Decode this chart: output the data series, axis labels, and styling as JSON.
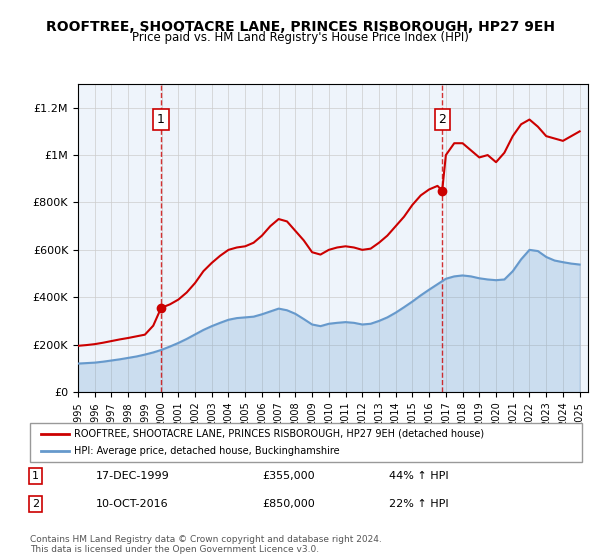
{
  "title": "ROOFTREE, SHOOTACRE LANE, PRINCES RISBOROUGH, HP27 9EH",
  "subtitle": "Price paid vs. HM Land Registry's House Price Index (HPI)",
  "legend_line1": "ROOFTREE, SHOOTACRE LANE, PRINCES RISBOROUGH, HP27 9EH (detached house)",
  "legend_line2": "HPI: Average price, detached house, Buckinghamshire",
  "footnote": "Contains HM Land Registry data © Crown copyright and database right 2024.\nThis data is licensed under the Open Government Licence v3.0.",
  "sale1_label": "1",
  "sale1_date": "17-DEC-1999",
  "sale1_price": "£355,000",
  "sale1_hpi": "44% ↑ HPI",
  "sale2_label": "2",
  "sale2_date": "10-OCT-2016",
  "sale2_price": "£850,000",
  "sale2_hpi": "22% ↑ HPI",
  "property_color": "#cc0000",
  "hpi_color": "#6699cc",
  "fill_color": "#ddeeff",
  "background_color": "#ffffff",
  "ylim": [
    0,
    1300000
  ],
  "xlim_start": 1995.0,
  "xlim_end": 2025.5,
  "sale1_x": 1999.97,
  "sale1_y": 355000,
  "sale2_x": 2016.78,
  "sale2_y": 850000,
  "property_x": [
    1995.0,
    1995.5,
    1996.0,
    1996.5,
    1997.0,
    1997.5,
    1998.0,
    1998.5,
    1999.0,
    1999.5,
    1999.97,
    2000.5,
    2001.0,
    2001.5,
    2002.0,
    2002.5,
    2003.0,
    2003.5,
    2004.0,
    2004.5,
    2005.0,
    2005.5,
    2006.0,
    2006.5,
    2007.0,
    2007.5,
    2008.0,
    2008.5,
    2009.0,
    2009.5,
    2010.0,
    2010.5,
    2011.0,
    2011.5,
    2012.0,
    2012.5,
    2013.0,
    2013.5,
    2014.0,
    2014.5,
    2015.0,
    2015.5,
    2016.0,
    2016.5,
    2016.78,
    2017.0,
    2017.5,
    2018.0,
    2018.5,
    2019.0,
    2019.5,
    2020.0,
    2020.5,
    2021.0,
    2021.5,
    2022.0,
    2022.5,
    2023.0,
    2023.5,
    2024.0,
    2024.5,
    2025.0
  ],
  "property_y": [
    195000,
    198000,
    202000,
    208000,
    215000,
    222000,
    228000,
    235000,
    242000,
    280000,
    355000,
    370000,
    390000,
    420000,
    460000,
    510000,
    545000,
    575000,
    600000,
    610000,
    615000,
    630000,
    660000,
    700000,
    730000,
    720000,
    680000,
    640000,
    590000,
    580000,
    600000,
    610000,
    615000,
    610000,
    600000,
    605000,
    630000,
    660000,
    700000,
    740000,
    790000,
    830000,
    855000,
    870000,
    850000,
    1000000,
    1050000,
    1050000,
    1020000,
    990000,
    1000000,
    970000,
    1010000,
    1080000,
    1130000,
    1150000,
    1120000,
    1080000,
    1070000,
    1060000,
    1080000,
    1100000
  ],
  "hpi_x": [
    1995.0,
    1995.5,
    1996.0,
    1996.5,
    1997.0,
    1997.5,
    1998.0,
    1998.5,
    1999.0,
    1999.5,
    2000.0,
    2000.5,
    2001.0,
    2001.5,
    2002.0,
    2002.5,
    2003.0,
    2003.5,
    2004.0,
    2004.5,
    2005.0,
    2005.5,
    2006.0,
    2006.5,
    2007.0,
    2007.5,
    2008.0,
    2008.5,
    2009.0,
    2009.5,
    2010.0,
    2010.5,
    2011.0,
    2011.5,
    2012.0,
    2012.5,
    2013.0,
    2013.5,
    2014.0,
    2014.5,
    2015.0,
    2015.5,
    2016.0,
    2016.5,
    2017.0,
    2017.5,
    2018.0,
    2018.5,
    2019.0,
    2019.5,
    2020.0,
    2020.5,
    2021.0,
    2021.5,
    2022.0,
    2022.5,
    2023.0,
    2023.5,
    2024.0,
    2024.5,
    2025.0
  ],
  "hpi_y": [
    120000,
    122000,
    124000,
    128000,
    133000,
    138000,
    144000,
    150000,
    158000,
    167000,
    178000,
    192000,
    207000,
    224000,
    243000,
    262000,
    278000,
    292000,
    305000,
    312000,
    315000,
    318000,
    328000,
    340000,
    352000,
    345000,
    330000,
    308000,
    285000,
    278000,
    288000,
    292000,
    295000,
    292000,
    285000,
    288000,
    300000,
    315000,
    335000,
    358000,
    382000,
    408000,
    432000,
    455000,
    478000,
    488000,
    492000,
    488000,
    480000,
    475000,
    472000,
    475000,
    510000,
    560000,
    600000,
    595000,
    570000,
    555000,
    548000,
    542000,
    538000
  ]
}
